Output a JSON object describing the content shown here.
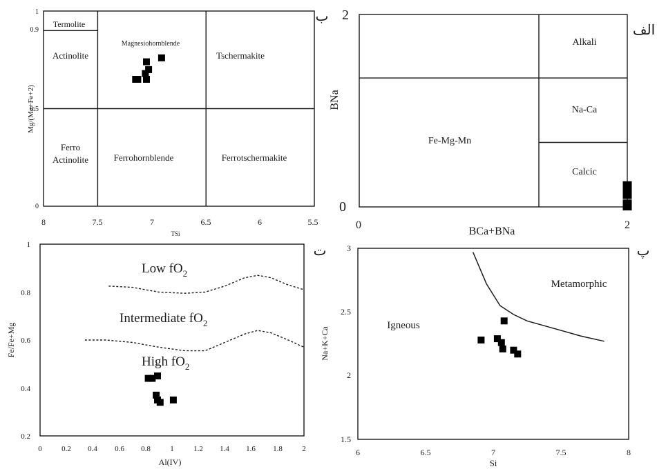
{
  "panels": {
    "b": {
      "corner_label": "ب",
      "ylabel": "Mg/(Mg+Fe+2)",
      "xlabel": "TSi",
      "x_ticks": [
        "8",
        "7.5",
        "7",
        "6.5",
        "6",
        "5.5"
      ],
      "y_ticks": [
        "1",
        "0.9",
        "0.5",
        "0"
      ],
      "fields": [
        "Termolite",
        "Actinolite",
        "Magnesiohornblende",
        "Tschermakite",
        "Ferro",
        "Actinolite",
        "Ferrohornblende",
        "Ferrotschermakite"
      ]
    },
    "a": {
      "corner_label": "الف",
      "ylabel": "BNa",
      "xlabel": "BCa+BNa",
      "x_ticks": [
        "0",
        "2"
      ],
      "y_ticks": [
        "2",
        "0"
      ],
      "fields": [
        "Alkali",
        "Na-Ca",
        "Fe-Mg-Mn",
        "Calcic"
      ]
    },
    "t": {
      "corner_label": "ت",
      "ylabel": "Fe/Fe+Mg",
      "xlabel": "Al(IV)",
      "x_ticks": [
        "0",
        "0.2",
        "0.4",
        "0.6",
        "0.8",
        "1",
        "1.2",
        "1.4",
        "1.6",
        "1.8",
        "2"
      ],
      "y_ticks": [
        "1",
        "0.8",
        "0.6",
        "0.4",
        "0.2"
      ],
      "zone_labels": [
        "Low fO",
        "Intermediate fO",
        "High fO"
      ],
      "subscript": "2"
    },
    "p": {
      "corner_label": "پ",
      "ylabel": "Na+K+Ca",
      "xlabel": "Si",
      "x_ticks": [
        "6",
        "6.5",
        "7",
        "7.5",
        "8"
      ],
      "y_ticks": [
        "3",
        "2.5",
        "2",
        "1.5"
      ],
      "fields": [
        "Igneous",
        "Metamorphic"
      ]
    }
  },
  "colors": {
    "axis": "#1a1a1a",
    "marker": "#000000"
  },
  "chart_data": [
    {
      "type": "scatter",
      "panel": "b",
      "xlabel": "TSi",
      "ylabel": "Mg/(Mg+Fe+2)",
      "xlim": [
        8,
        5.5
      ],
      "ylim": [
        0,
        1
      ],
      "x_reversed": true,
      "boundaries": [
        {
          "x": [
            8,
            5.5
          ],
          "y": [
            0.5,
            0.5
          ]
        },
        {
          "x": [
            7.5,
            7.5
          ],
          "y": [
            0,
            1
          ]
        },
        {
          "x": [
            6.5,
            6.5
          ],
          "y": [
            0,
            1
          ]
        },
        {
          "x": [
            8,
            7.5
          ],
          "y": [
            0.9,
            0.9
          ]
        }
      ],
      "points": [
        {
          "x": 7.15,
          "y": 0.65
        },
        {
          "x": 7.13,
          "y": 0.65
        },
        {
          "x": 7.05,
          "y": 0.65
        },
        {
          "x": 7.06,
          "y": 0.68
        },
        {
          "x": 7.03,
          "y": 0.7
        },
        {
          "x": 7.05,
          "y": 0.74
        },
        {
          "x": 6.91,
          "y": 0.76
        }
      ]
    },
    {
      "type": "scatter",
      "panel": "a",
      "xlabel": "BCa+BNa",
      "ylabel": "BNa",
      "xlim": [
        0,
        2
      ],
      "ylim": [
        0,
        2
      ],
      "boundaries": [
        {
          "x": [
            0,
            2
          ],
          "y": [
            1.34,
            1.34
          ]
        },
        {
          "x": [
            1.34,
            1.34
          ],
          "y": [
            0,
            2
          ]
        },
        {
          "x": [
            1.34,
            2
          ],
          "y": [
            0.67,
            0.67
          ]
        }
      ],
      "points": [
        {
          "x": 2.0,
          "y": 0.22
        },
        {
          "x": 2.0,
          "y": 0.19
        },
        {
          "x": 2.0,
          "y": 0.16
        },
        {
          "x": 2.0,
          "y": 0.13
        },
        {
          "x": 2.0,
          "y": 0.03
        },
        {
          "x": 2.0,
          "y": 0.01
        }
      ]
    },
    {
      "type": "scatter",
      "panel": "t",
      "xlabel": "Al(IV)",
      "ylabel": "Fe/Fe+Mg",
      "xlim": [
        0,
        2
      ],
      "ylim": [
        0.2,
        1
      ],
      "curves": [
        {
          "style": "dashed",
          "x": [
            0.52,
            0.7,
            0.9,
            1.1,
            1.25,
            1.4,
            1.55,
            1.65,
            1.75,
            1.88,
            2.0
          ],
          "y": [
            0.825,
            0.82,
            0.8,
            0.795,
            0.8,
            0.825,
            0.86,
            0.87,
            0.86,
            0.83,
            0.81
          ]
        },
        {
          "style": "dashed",
          "x": [
            0.34,
            0.5,
            0.7,
            0.9,
            1.1,
            1.25,
            1.4,
            1.55,
            1.65,
            1.75,
            1.88,
            2.0
          ],
          "y": [
            0.6,
            0.6,
            0.59,
            0.57,
            0.555,
            0.555,
            0.59,
            0.625,
            0.64,
            0.63,
            0.6,
            0.57
          ]
        }
      ],
      "points": [
        {
          "x": 0.82,
          "y": 0.44
        },
        {
          "x": 0.85,
          "y": 0.44
        },
        {
          "x": 0.89,
          "y": 0.45
        },
        {
          "x": 0.88,
          "y": 0.37
        },
        {
          "x": 0.89,
          "y": 0.35
        },
        {
          "x": 0.91,
          "y": 0.34
        },
        {
          "x": 1.01,
          "y": 0.35
        }
      ]
    },
    {
      "type": "scatter",
      "panel": "p",
      "xlabel": "Si",
      "ylabel": "Na+K+Ca",
      "xlim": [
        6,
        8
      ],
      "ylim": [
        1.5,
        3
      ],
      "curves": [
        {
          "style": "solid",
          "x": [
            6.85,
            6.95,
            7.05,
            7.15,
            7.25,
            7.45,
            7.65,
            7.82
          ],
          "y": [
            2.97,
            2.72,
            2.55,
            2.48,
            2.43,
            2.37,
            2.31,
            2.27
          ]
        }
      ],
      "points": [
        {
          "x": 6.91,
          "y": 2.28
        },
        {
          "x": 7.03,
          "y": 2.29
        },
        {
          "x": 7.06,
          "y": 2.26
        },
        {
          "x": 7.08,
          "y": 2.43
        },
        {
          "x": 7.07,
          "y": 2.21
        },
        {
          "x": 7.15,
          "y": 2.2
        },
        {
          "x": 7.18,
          "y": 2.17
        }
      ]
    }
  ]
}
